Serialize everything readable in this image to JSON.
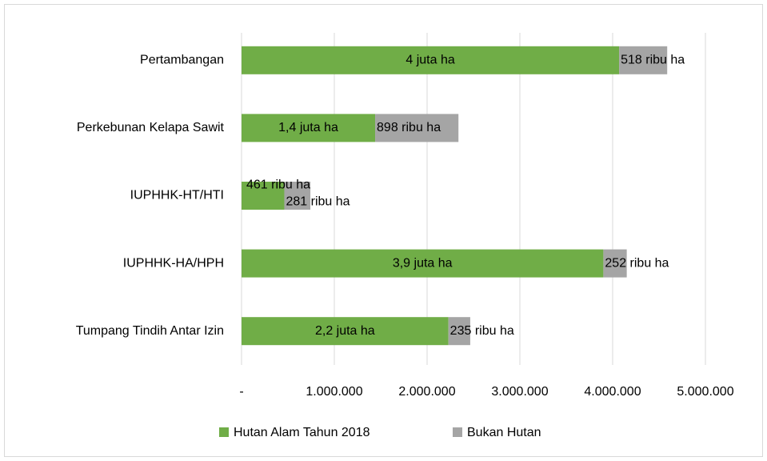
{
  "chart_data": {
    "type": "stacked-bar-horizontal",
    "categories": [
      "Pertambangan",
      "Perkebunan Kelapa Sawit",
      "IUPHHK-HT/HTI",
      "IUPHHK-HA/HPH",
      "Tumpang Tindih Antar Izin"
    ],
    "series": [
      {
        "name": "Hutan Alam Tahun 2018",
        "color": "#70ad47",
        "values": [
          4070000,
          1440000,
          461000,
          3900000,
          2230000
        ],
        "value_labels": [
          "4 juta ha",
          "1,4 juta ha",
          "461 ribu ha",
          "3,9 juta ha",
          "2,2 juta ha"
        ]
      },
      {
        "name": "Bukan Hutan",
        "color": "#a5a5a5",
        "values": [
          518000,
          898000,
          281000,
          252000,
          235000
        ],
        "value_labels": [
          "518 ribu ha",
          "898 ribu ha",
          "281 ribu ha",
          "252 ribu ha",
          "235 ribu ha"
        ]
      }
    ],
    "xlim": [
      0,
      5000000
    ],
    "xticks": [
      {
        "value": 0,
        "label": "-"
      },
      {
        "value": 1000000,
        "label": "1.000.000"
      },
      {
        "value": 2000000,
        "label": "2.000.000"
      },
      {
        "value": 3000000,
        "label": "3.000.000"
      },
      {
        "value": 4000000,
        "label": "4.000.000"
      },
      {
        "value": 5000000,
        "label": "5.000.000"
      }
    ],
    "grid": true,
    "legend": "bottom"
  }
}
